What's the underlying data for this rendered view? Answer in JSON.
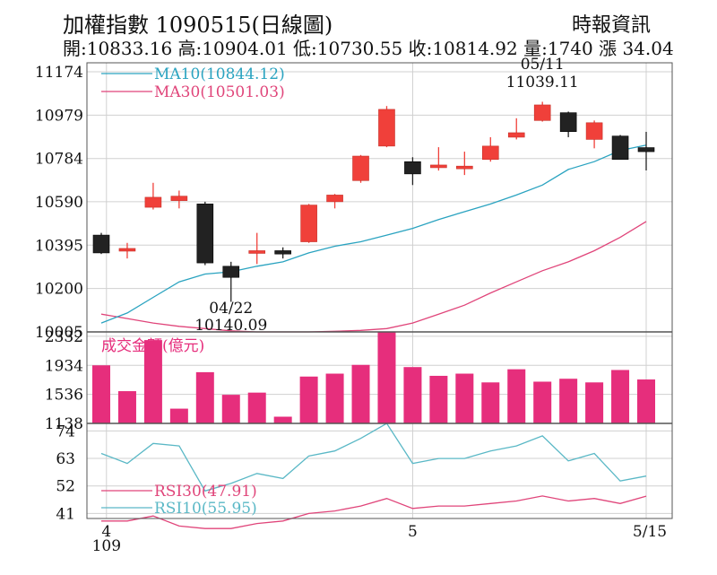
{
  "header": {
    "title": "加權指數 1090515(日線圖)",
    "source": "時報資訊",
    "stats": "開:10833.16 高:10904.01 低:10730.55 收:10814.92 量:1740 漲 34.04"
  },
  "chart_data": {
    "type": "candlestick",
    "price_axis": {
      "ticks": [
        10005,
        10200,
        10395,
        10590,
        10784,
        10979,
        11174
      ],
      "ylim": [
        10005,
        11174
      ]
    },
    "candles": [
      {
        "o": 10440,
        "h": 10450,
        "l": 10355,
        "c": 10360
      },
      {
        "o": 10375,
        "h": 10405,
        "l": 10335,
        "c": 10380
      },
      {
        "o": 10565,
        "h": 10675,
        "l": 10555,
        "c": 10610
      },
      {
        "o": 10595,
        "h": 10640,
        "l": 10560,
        "c": 10615
      },
      {
        "o": 10580,
        "h": 10590,
        "l": 10305,
        "c": 10315
      },
      {
        "o": 10300,
        "h": 10320,
        "l": 10140.09,
        "c": 10250
      },
      {
        "o": 10365,
        "h": 10450,
        "l": 10310,
        "c": 10370
      },
      {
        "o": 10370,
        "h": 10385,
        "l": 10335,
        "c": 10355
      },
      {
        "o": 10410,
        "h": 10580,
        "l": 10405,
        "c": 10575
      },
      {
        "o": 10590,
        "h": 10625,
        "l": 10560,
        "c": 10620
      },
      {
        "o": 10685,
        "h": 10800,
        "l": 10675,
        "c": 10795
      },
      {
        "o": 10840,
        "h": 11020,
        "l": 10835,
        "c": 11005
      },
      {
        "o": 10770,
        "h": 10790,
        "l": 10665,
        "c": 10715
      },
      {
        "o": 10745,
        "h": 10835,
        "l": 10730,
        "c": 10755
      },
      {
        "o": 10748,
        "h": 10815,
        "l": 10710,
        "c": 10750
      },
      {
        "o": 10780,
        "h": 10880,
        "l": 10770,
        "c": 10840
      },
      {
        "o": 10880,
        "h": 10965,
        "l": 10870,
        "c": 10900
      },
      {
        "o": 10955,
        "h": 11039.11,
        "l": 10950,
        "c": 11025
      },
      {
        "o": 10990,
        "h": 10995,
        "l": 10880,
        "c": 10905
      },
      {
        "o": 10870,
        "h": 10955,
        "l": 10830,
        "c": 10945
      },
      {
        "o": 10885,
        "h": 10890,
        "l": 10780,
        "c": 10780
      },
      {
        "o": 10833.16,
        "h": 10904.01,
        "l": 10730.55,
        "c": 10814.92
      }
    ],
    "ma10": {
      "label": "MA10(10844.12)",
      "values": [
        10045,
        10090,
        10160,
        10230,
        10265,
        10275,
        10300,
        10320,
        10360,
        10390,
        10410,
        10440,
        10470,
        10510,
        10545,
        10580,
        10620,
        10665,
        10735,
        10770,
        10820,
        10844.12
      ]
    },
    "ma30": {
      "label": "MA30(10501.03)",
      "values": [
        10085,
        10065,
        10045,
        10030,
        10020,
        10010,
        10005,
        10005,
        10005,
        10008,
        10012,
        10020,
        10045,
        10085,
        10125,
        10180,
        10230,
        10280,
        10320,
        10370,
        10430,
        10501.03
      ]
    },
    "annotations": [
      {
        "label_top": "05/11",
        "label_bottom": "11039.11",
        "index": 17,
        "position": "above"
      },
      {
        "label_top": "04/22",
        "label_bottom": "10140.09",
        "index": 5,
        "position": "below"
      }
    ],
    "volume": {
      "label": "成交金額(億元)",
      "ticks": [
        1138,
        1536,
        1934,
        2332
      ],
      "ylim": [
        1138,
        2392
      ],
      "values": [
        1934,
        1580,
        2280,
        1340,
        1840,
        1530,
        1560,
        1230,
        1780,
        1820,
        1940,
        2400,
        1910,
        1790,
        1820,
        1700,
        1880,
        1710,
        1750,
        1700,
        1870,
        1740
      ]
    },
    "rsi": {
      "ticks": [
        41,
        52,
        63,
        74
      ],
      "ylim": [
        39,
        77
      ],
      "rsi30": {
        "label": "RSI30(47.91)",
        "values": [
          38,
          38,
          40,
          36,
          35,
          35,
          37,
          38,
          41,
          42,
          44,
          47,
          43,
          44,
          44,
          45,
          46,
          48,
          46,
          47,
          45,
          47.91
        ]
      },
      "rsi10": {
        "label": "RSI10(55.95)",
        "values": [
          65,
          61,
          69,
          68,
          50,
          53,
          57,
          55,
          64,
          66,
          71,
          77,
          61,
          63,
          63,
          66,
          68,
          72,
          62,
          65,
          54,
          55.95
        ]
      }
    },
    "x_ticks": [
      {
        "label": "4",
        "index": 0.2
      },
      {
        "label": "109",
        "index": 0.2,
        "row": 2
      },
      {
        "label": "5",
        "index": 12.0
      },
      {
        "label": "5/15",
        "index": 21.0
      }
    ],
    "colors": {
      "up": "#f0403a",
      "down": "#222222",
      "flat": "#222222",
      "ma10": "#2aa3c0",
      "ma30": "#e0457a",
      "volume": "#e62e7c",
      "rsi10": "#5ab8c6",
      "rsi30": "#e0457a",
      "grid": "#d0d0d0"
    }
  }
}
